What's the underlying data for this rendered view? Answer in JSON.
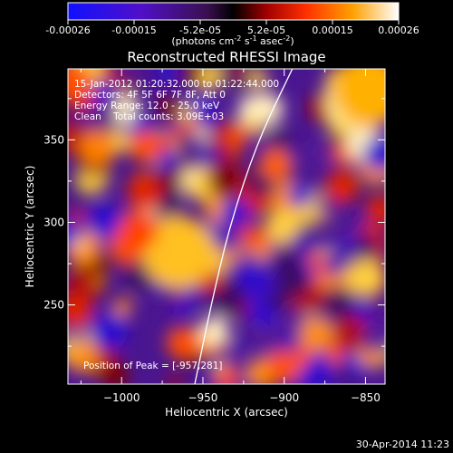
{
  "colorbar": {
    "ticks": [
      "-0.00026",
      "-0.00015",
      "-5.2e-05",
      "5.2e-05",
      "0.00015",
      "0.00026"
    ],
    "unit_parts": [
      "(photons cm",
      "-2",
      " s",
      "-1",
      " asec",
      "-2",
      ")"
    ]
  },
  "chart_data": {
    "type": "heatmap",
    "title": "Reconstructed RHESSI Image",
    "xlabel": "Heliocentric X (arcsec)",
    "ylabel": "Heliocentric Y (arcsec)",
    "xlim": [
      -1033,
      -838
    ],
    "ylim": [
      202,
      393
    ],
    "xticks": [
      -1000,
      -950,
      -900,
      -850
    ],
    "xtick_labels": [
      "−1000",
      "−950",
      "−900",
      "−850"
    ],
    "yticks": [
      250,
      300,
      350
    ],
    "ytick_labels": [
      "250",
      "300",
      "350"
    ],
    "colorbar_range": [
      -0.00026,
      0.00026
    ],
    "colormap": "blue-purple-red-yellow-white",
    "limb_curve": [
      [
        -955,
        202
      ],
      [
        -945,
        250
      ],
      [
        -933,
        300
      ],
      [
        -916,
        350
      ],
      [
        -895,
        393
      ]
    ],
    "peak": [
      -957,
      281
    ],
    "annotations": [
      "15-Jan-2012 01:20:32.000 to 01:22:44.000",
      "Detectors: 4F 5F 6F 7F 8F, Att 0",
      "Energy Range: 12.0 - 25.0 keV",
      "Clean    Total counts: 3.09E+03",
      "Position of Peak = [-957,281]"
    ]
  },
  "footer": {
    "date": "30-Apr-2014 11:23"
  }
}
